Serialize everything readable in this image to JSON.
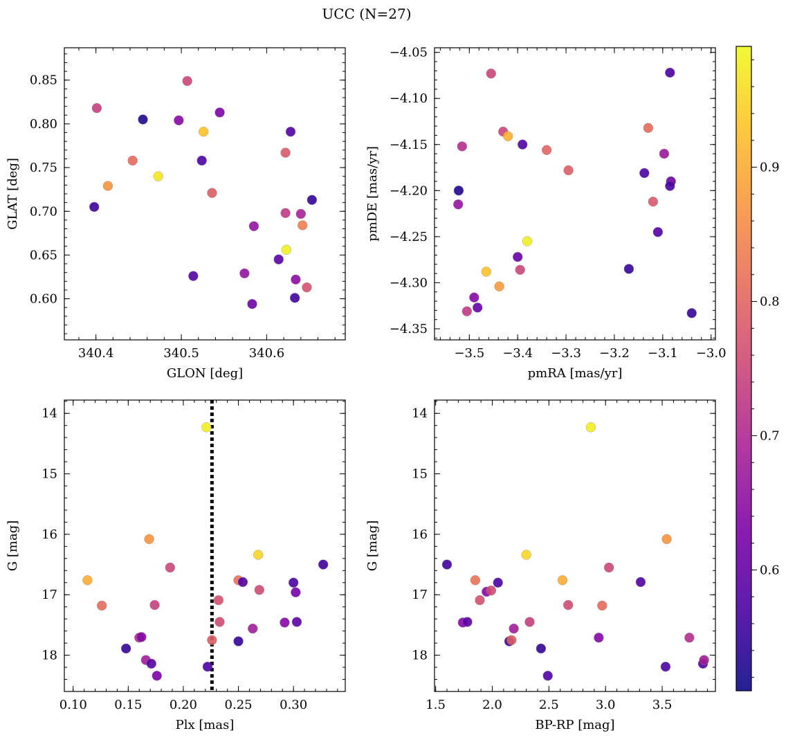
{
  "figure": {
    "title": "UCC (N=27)",
    "colorbar": {
      "colormap": "plasma",
      "range": [
        0.51,
        0.99
      ],
      "ticks": [
        0.6,
        0.7,
        0.8,
        0.9
      ],
      "tick_labels": [
        "0.6",
        "0.7",
        "0.8",
        "0.9"
      ]
    }
  },
  "chart_data": [
    {
      "type": "scatter",
      "xlabel": "GLON [deg]",
      "ylabel": "GLAT [deg]",
      "xlim": [
        340.363,
        340.692
      ],
      "ylim": [
        0.553,
        0.887
      ],
      "xticks": [
        340.4,
        340.5,
        340.6
      ],
      "xtick_labels": [
        "340.4",
        "340.5",
        "340.6"
      ],
      "yticks": [
        0.6,
        0.65,
        0.7,
        0.75,
        0.8,
        0.85
      ],
      "ytick_labels": [
        "0.60",
        "0.65",
        "0.70",
        "0.75",
        "0.80",
        "0.85"
      ],
      "points": [
        {
          "x": 340.401,
          "y": 0.818,
          "c": 0.74
        },
        {
          "x": 340.398,
          "y": 0.705,
          "c": 0.56
        },
        {
          "x": 340.414,
          "y": 0.729,
          "c": 0.87
        },
        {
          "x": 340.443,
          "y": 0.758,
          "c": 0.81
        },
        {
          "x": 340.455,
          "y": 0.805,
          "c": 0.53
        },
        {
          "x": 340.473,
          "y": 0.74,
          "c": 0.97
        },
        {
          "x": 340.497,
          "y": 0.804,
          "c": 0.64
        },
        {
          "x": 340.507,
          "y": 0.849,
          "c": 0.75
        },
        {
          "x": 340.514,
          "y": 0.626,
          "c": 0.58
        },
        {
          "x": 340.524,
          "y": 0.758,
          "c": 0.57
        },
        {
          "x": 340.526,
          "y": 0.791,
          "c": 0.93
        },
        {
          "x": 340.536,
          "y": 0.721,
          "c": 0.79
        },
        {
          "x": 340.545,
          "y": 0.813,
          "c": 0.63
        },
        {
          "x": 340.574,
          "y": 0.629,
          "c": 0.66
        },
        {
          "x": 340.583,
          "y": 0.594,
          "c": 0.61
        },
        {
          "x": 340.585,
          "y": 0.683,
          "c": 0.66
        },
        {
          "x": 340.614,
          "y": 0.645,
          "c": 0.59
        },
        {
          "x": 340.622,
          "y": 0.767,
          "c": 0.78
        },
        {
          "x": 340.622,
          "y": 0.698,
          "c": 0.73
        },
        {
          "x": 340.623,
          "y": 0.656,
          "c": 0.98
        },
        {
          "x": 340.628,
          "y": 0.791,
          "c": 0.58
        },
        {
          "x": 340.633,
          "y": 0.601,
          "c": 0.56
        },
        {
          "x": 340.634,
          "y": 0.622,
          "c": 0.65
        },
        {
          "x": 340.64,
          "y": 0.697,
          "c": 0.69
        },
        {
          "x": 340.642,
          "y": 0.684,
          "c": 0.84
        },
        {
          "x": 340.647,
          "y": 0.613,
          "c": 0.77
        },
        {
          "x": 340.653,
          "y": 0.713,
          "c": 0.55
        }
      ]
    },
    {
      "type": "scatter",
      "xlabel": "pmRA [mas/yr]",
      "ylabel": "pmDE [mas/yr]",
      "xlim": [
        -3.572,
        -2.991
      ],
      "ylim": [
        -4.362,
        -4.045
      ],
      "xticks": [
        -3.5,
        -3.4,
        -3.3,
        -3.2,
        -3.1,
        -3.0
      ],
      "xtick_labels": [
        "−3.5",
        "−3.4",
        "−3.3",
        "−3.2",
        "−3.1",
        "−3.0"
      ],
      "yticks": [
        -4.35,
        -4.3,
        -4.25,
        -4.2,
        -4.15,
        -4.1,
        -4.05
      ],
      "ytick_labels": [
        "−4.35",
        "−4.30",
        "−4.25",
        "−4.20",
        "−4.15",
        "−4.10",
        "−4.05"
      ],
      "points": [
        {
          "x": -3.455,
          "y": -4.073,
          "c": 0.75
        },
        {
          "x": -3.085,
          "y": -4.072,
          "c": 0.57
        },
        {
          "x": -3.515,
          "y": -4.152,
          "c": 0.71
        },
        {
          "x": -3.43,
          "y": -4.136,
          "c": 0.75
        },
        {
          "x": -3.42,
          "y": -4.141,
          "c": 0.91
        },
        {
          "x": -3.39,
          "y": -4.15,
          "c": 0.58
        },
        {
          "x": -3.34,
          "y": -4.156,
          "c": 0.8
        },
        {
          "x": -3.295,
          "y": -4.178,
          "c": 0.79
        },
        {
          "x": -3.13,
          "y": -4.132,
          "c": 0.81
        },
        {
          "x": -3.097,
          "y": -4.16,
          "c": 0.67
        },
        {
          "x": -3.138,
          "y": -4.181,
          "c": 0.57
        },
        {
          "x": -3.12,
          "y": -4.212,
          "c": 0.78
        },
        {
          "x": -3.083,
          "y": -4.19,
          "c": 0.61
        },
        {
          "x": -3.085,
          "y": -4.195,
          "c": 0.57
        },
        {
          "x": -3.11,
          "y": -4.245,
          "c": 0.58
        },
        {
          "x": -3.522,
          "y": -4.2,
          "c": 0.53
        },
        {
          "x": -3.523,
          "y": -4.215,
          "c": 0.66
        },
        {
          "x": -3.38,
          "y": -4.255,
          "c": 0.98
        },
        {
          "x": -3.4,
          "y": -4.272,
          "c": 0.6
        },
        {
          "x": -3.395,
          "y": -4.286,
          "c": 0.75
        },
        {
          "x": -3.465,
          "y": -4.288,
          "c": 0.93
        },
        {
          "x": -3.438,
          "y": -4.304,
          "c": 0.88
        },
        {
          "x": -3.49,
          "y": -4.316,
          "c": 0.64
        },
        {
          "x": -3.483,
          "y": -4.327,
          "c": 0.6
        },
        {
          "x": -3.505,
          "y": -4.331,
          "c": 0.73
        },
        {
          "x": -3.17,
          "y": -4.285,
          "c": 0.55
        },
        {
          "x": -3.04,
          "y": -4.333,
          "c": 0.55
        }
      ]
    },
    {
      "type": "scatter",
      "xlabel": "Plx [mas]",
      "ylabel": "G [mag]",
      "xlim": [
        0.092,
        0.347
      ],
      "ylim": [
        18.6,
        13.78
      ],
      "xticks": [
        0.1,
        0.15,
        0.2,
        0.25,
        0.3
      ],
      "xtick_labels": [
        "0.10",
        "0.15",
        "0.20",
        "0.25",
        "0.30"
      ],
      "yticks": [
        14,
        15,
        16,
        17,
        18
      ],
      "ytick_labels": [
        "14",
        "15",
        "16",
        "17",
        "18"
      ],
      "vline": {
        "x": 0.226,
        "style": "dotted",
        "color": "#000000"
      },
      "points": [
        {
          "x": 0.221,
          "y": 14.23,
          "c": 0.98
        },
        {
          "x": 0.169,
          "y": 16.08,
          "c": 0.87
        },
        {
          "x": 0.268,
          "y": 16.34,
          "c": 0.95
        },
        {
          "x": 0.188,
          "y": 16.55,
          "c": 0.75
        },
        {
          "x": 0.113,
          "y": 16.76,
          "c": 0.9
        },
        {
          "x": 0.126,
          "y": 17.18,
          "c": 0.81
        },
        {
          "x": 0.174,
          "y": 17.17,
          "c": 0.74
        },
        {
          "x": 0.25,
          "y": 16.76,
          "c": 0.82
        },
        {
          "x": 0.254,
          "y": 16.79,
          "c": 0.58
        },
        {
          "x": 0.269,
          "y": 16.92,
          "c": 0.76
        },
        {
          "x": 0.232,
          "y": 17.09,
          "c": 0.77
        },
        {
          "x": 0.3,
          "y": 16.8,
          "c": 0.57
        },
        {
          "x": 0.302,
          "y": 16.96,
          "c": 0.62
        },
        {
          "x": 0.327,
          "y": 16.5,
          "c": 0.56
        },
        {
          "x": 0.233,
          "y": 17.45,
          "c": 0.76
        },
        {
          "x": 0.263,
          "y": 17.56,
          "c": 0.68
        },
        {
          "x": 0.292,
          "y": 17.46,
          "c": 0.64
        },
        {
          "x": 0.303,
          "y": 17.45,
          "c": 0.59
        },
        {
          "x": 0.226,
          "y": 17.75,
          "c": 0.79
        },
        {
          "x": 0.25,
          "y": 17.77,
          "c": 0.55
        },
        {
          "x": 0.148,
          "y": 17.89,
          "c": 0.55
        },
        {
          "x": 0.16,
          "y": 17.71,
          "c": 0.71
        },
        {
          "x": 0.162,
          "y": 17.7,
          "c": 0.64
        },
        {
          "x": 0.166,
          "y": 18.08,
          "c": 0.68
        },
        {
          "x": 0.171,
          "y": 18.14,
          "c": 0.58
        },
        {
          "x": 0.176,
          "y": 18.34,
          "c": 0.63
        },
        {
          "x": 0.222,
          "y": 18.19,
          "c": 0.57
        }
      ]
    },
    {
      "type": "scatter",
      "xlabel": "BP-RP [mag]",
      "ylabel": "G [mag]",
      "xlim": [
        1.49,
        3.97
      ],
      "ylim": [
        18.6,
        13.78
      ],
      "xticks": [
        1.5,
        2.0,
        2.5,
        3.0,
        3.5
      ],
      "xtick_labels": [
        "1.5",
        "2.0",
        "2.5",
        "3.0",
        "3.5"
      ],
      "yticks": [
        14,
        15,
        16,
        17,
        18
      ],
      "ytick_labels": [
        "14",
        "15",
        "16",
        "17",
        "18"
      ],
      "points": [
        {
          "x": 2.87,
          "y": 14.23,
          "c": 0.98
        },
        {
          "x": 3.54,
          "y": 16.08,
          "c": 0.87
        },
        {
          "x": 2.3,
          "y": 16.34,
          "c": 0.95
        },
        {
          "x": 3.03,
          "y": 16.55,
          "c": 0.75
        },
        {
          "x": 1.6,
          "y": 16.5,
          "c": 0.56
        },
        {
          "x": 1.85,
          "y": 16.76,
          "c": 0.82
        },
        {
          "x": 2.05,
          "y": 16.8,
          "c": 0.57
        },
        {
          "x": 1.95,
          "y": 16.95,
          "c": 0.64
        },
        {
          "x": 1.99,
          "y": 16.93,
          "c": 0.76
        },
        {
          "x": 2.62,
          "y": 16.76,
          "c": 0.9
        },
        {
          "x": 3.31,
          "y": 16.79,
          "c": 0.58
        },
        {
          "x": 1.89,
          "y": 17.09,
          "c": 0.77
        },
        {
          "x": 2.67,
          "y": 17.17,
          "c": 0.76
        },
        {
          "x": 2.97,
          "y": 17.18,
          "c": 0.81
        },
        {
          "x": 1.74,
          "y": 17.46,
          "c": 0.64
        },
        {
          "x": 1.78,
          "y": 17.45,
          "c": 0.59
        },
        {
          "x": 2.33,
          "y": 17.45,
          "c": 0.74
        },
        {
          "x": 2.19,
          "y": 17.56,
          "c": 0.68
        },
        {
          "x": 2.15,
          "y": 17.77,
          "c": 0.55
        },
        {
          "x": 2.17,
          "y": 17.75,
          "c": 0.79
        },
        {
          "x": 2.43,
          "y": 17.89,
          "c": 0.55
        },
        {
          "x": 2.94,
          "y": 17.71,
          "c": 0.64
        },
        {
          "x": 3.74,
          "y": 17.71,
          "c": 0.71
        },
        {
          "x": 2.49,
          "y": 18.34,
          "c": 0.58
        },
        {
          "x": 3.53,
          "y": 18.19,
          "c": 0.57
        },
        {
          "x": 3.86,
          "y": 18.14,
          "c": 0.58
        },
        {
          "x": 3.87,
          "y": 18.08,
          "c": 0.68
        }
      ]
    }
  ]
}
